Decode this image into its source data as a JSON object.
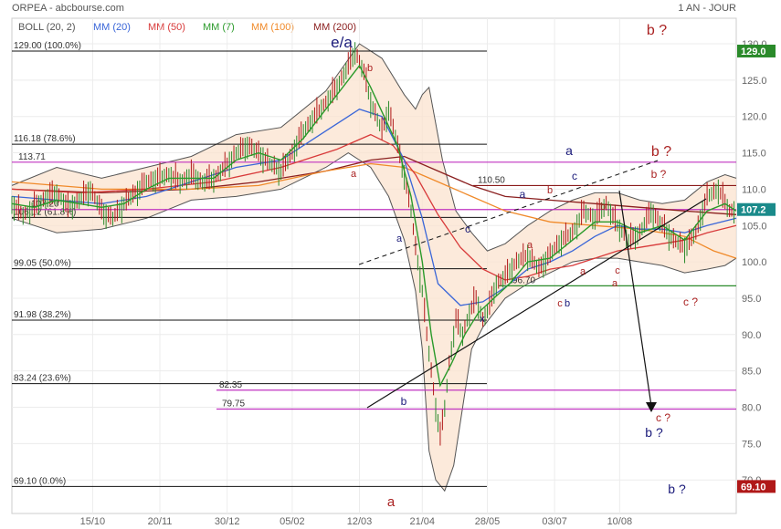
{
  "header": {
    "title": "ORPEA - abcbourse.com",
    "period": "1 AN - JOUR"
  },
  "legend": [
    {
      "label": "BOLL (20, 2)",
      "color": "#555555"
    },
    {
      "label": "MM (20)",
      "color": "#3a66d8"
    },
    {
      "label": "MM (50)",
      "color": "#d83a3a"
    },
    {
      "label": "MM (7)",
      "color": "#2a9a2a"
    },
    {
      "label": "MM (100)",
      "color": "#f08a2a"
    },
    {
      "label": "MM (200)",
      "color": "#8b2020"
    }
  ],
  "chart_data": {
    "type": "line",
    "x_tick_labels": [
      "15/10",
      "20/11",
      "30/12",
      "05/02",
      "12/03",
      "21/04",
      "28/05",
      "03/07",
      "10/08"
    ],
    "y_tick_labels": [
      "70.0",
      "75.0",
      "80.0",
      "85.0",
      "90.0",
      "95.0",
      "100.0",
      "105.0",
      "110.0",
      "115.0",
      "120.0",
      "125.0",
      "130.0"
    ],
    "ylim": [
      68.5,
      131
    ],
    "grid": true,
    "price_badges": [
      {
        "label": "129.0",
        "value": 129.0,
        "color": "#2a8a2a"
      },
      {
        "label": "107.2",
        "value": 107.2,
        "color": "#1a8a8a"
      },
      {
        "label": "69.10",
        "value": 69.1,
        "color": "#b01818"
      }
    ],
    "close_series": [
      [
        0,
        108
      ],
      [
        5,
        106.5
      ],
      [
        10,
        107.5
      ],
      [
        15,
        108.8
      ],
      [
        20,
        109.5
      ],
      [
        25,
        107.5
      ],
      [
        30,
        108.5
      ],
      [
        35,
        110
      ],
      [
        40,
        107
      ],
      [
        45,
        106
      ],
      [
        50,
        108
      ],
      [
        55,
        109.5
      ],
      [
        60,
        111
      ],
      [
        65,
        111.5
      ],
      [
        70,
        112
      ],
      [
        75,
        111
      ],
      [
        80,
        112
      ],
      [
        85,
        111
      ],
      [
        90,
        111.5
      ],
      [
        95,
        113
      ],
      [
        100,
        115
      ],
      [
        105,
        116
      ],
      [
        110,
        115
      ],
      [
        115,
        113.5
      ],
      [
        120,
        112.5
      ],
      [
        125,
        115
      ],
      [
        130,
        118
      ],
      [
        135,
        120
      ],
      [
        140,
        122
      ],
      [
        145,
        124
      ],
      [
        150,
        127
      ],
      [
        153,
        129
      ],
      [
        157,
        126
      ],
      [
        160,
        122
      ],
      [
        165,
        118
      ],
      [
        168,
        121
      ],
      [
        172,
        116
      ],
      [
        175,
        112
      ],
      [
        178,
        107
      ],
      [
        180,
        102
      ],
      [
        183,
        96
      ],
      [
        185,
        90
      ],
      [
        187,
        85
      ],
      [
        189,
        80
      ],
      [
        191,
        76
      ],
      [
        193,
        80
      ],
      [
        195,
        86
      ],
      [
        198,
        92
      ],
      [
        201,
        90
      ],
      [
        204,
        93
      ],
      [
        207,
        95
      ],
      [
        210,
        92
      ],
      [
        213,
        94
      ],
      [
        216,
        97
      ],
      [
        220,
        98
      ],
      [
        225,
        100
      ],
      [
        230,
        101
      ],
      [
        235,
        99
      ],
      [
        240,
        101
      ],
      [
        245,
        103
      ],
      [
        250,
        104
      ],
      [
        255,
        107
      ],
      [
        260,
        106
      ],
      [
        265,
        108
      ],
      [
        270,
        105
      ],
      [
        275,
        103
      ],
      [
        280,
        104
      ],
      [
        285,
        107
      ],
      [
        290,
        105
      ],
      [
        295,
        103
      ],
      [
        300,
        102
      ],
      [
        305,
        104
      ],
      [
        310,
        109
      ],
      [
        315,
        110
      ],
      [
        320,
        107
      ],
      [
        323,
        107.2
      ]
    ],
    "ma7_series": [
      [
        0,
        108
      ],
      [
        10,
        107.5
      ],
      [
        20,
        108.5
      ],
      [
        30,
        108
      ],
      [
        40,
        107.5
      ],
      [
        50,
        108
      ],
      [
        60,
        110
      ],
      [
        70,
        111.5
      ],
      [
        80,
        111.5
      ],
      [
        90,
        111.5
      ],
      [
        100,
        114
      ],
      [
        110,
        115
      ],
      [
        120,
        114
      ],
      [
        130,
        117
      ],
      [
        140,
        121
      ],
      [
        150,
        125
      ],
      [
        155,
        127
      ],
      [
        160,
        124
      ],
      [
        166,
        120
      ],
      [
        172,
        116
      ],
      [
        178,
        109
      ],
      [
        183,
        100
      ],
      [
        187,
        90
      ],
      [
        191,
        83
      ],
      [
        196,
        86
      ],
      [
        202,
        90
      ],
      [
        208,
        93
      ],
      [
        215,
        95
      ],
      [
        222,
        97
      ],
      [
        230,
        100
      ],
      [
        240,
        100.5
      ],
      [
        250,
        103
      ],
      [
        260,
        105.5
      ],
      [
        270,
        105.5
      ],
      [
        280,
        104
      ],
      [
        290,
        105
      ],
      [
        300,
        103
      ],
      [
        310,
        107
      ],
      [
        318,
        108
      ],
      [
        323,
        107
      ]
    ],
    "ma20_series": [
      [
        0,
        109
      ],
      [
        20,
        108.5
      ],
      [
        40,
        108
      ],
      [
        60,
        109
      ],
      [
        80,
        111
      ],
      [
        100,
        113
      ],
      [
        120,
        114
      ],
      [
        140,
        118
      ],
      [
        155,
        121
      ],
      [
        165,
        120
      ],
      [
        175,
        114
      ],
      [
        183,
        106
      ],
      [
        190,
        97
      ],
      [
        200,
        94
      ],
      [
        210,
        94.5
      ],
      [
        220,
        96.5
      ],
      [
        230,
        99
      ],
      [
        240,
        100
      ],
      [
        250,
        101.5
      ],
      [
        260,
        103.5
      ],
      [
        270,
        105
      ],
      [
        280,
        104.5
      ],
      [
        290,
        104.5
      ],
      [
        300,
        104
      ],
      [
        310,
        105
      ],
      [
        323,
        106
      ]
    ],
    "ma50_series": [
      [
        0,
        110
      ],
      [
        30,
        109.5
      ],
      [
        60,
        110
      ],
      [
        90,
        111
      ],
      [
        120,
        113
      ],
      [
        145,
        115.5
      ],
      [
        160,
        117.5
      ],
      [
        170,
        116
      ],
      [
        180,
        112
      ],
      [
        190,
        106.5
      ],
      [
        200,
        102
      ],
      [
        210,
        99
      ],
      [
        220,
        97.5
      ],
      [
        230,
        98
      ],
      [
        240,
        99
      ],
      [
        250,
        99.5
      ],
      [
        260,
        100.5
      ],
      [
        270,
        101.5
      ],
      [
        280,
        102
      ],
      [
        290,
        102.5
      ],
      [
        300,
        103
      ],
      [
        310,
        104
      ],
      [
        323,
        105
      ]
    ],
    "ma100_series": [
      [
        0,
        111
      ],
      [
        40,
        110
      ],
      [
        80,
        110
      ],
      [
        110,
        110.5
      ],
      [
        140,
        112.5
      ],
      [
        160,
        113.5
      ],
      [
        175,
        113
      ],
      [
        190,
        111
      ],
      [
        205,
        109
      ],
      [
        220,
        107
      ],
      [
        240,
        105.5
      ],
      [
        260,
        105
      ],
      [
        280,
        104.5
      ],
      [
        300,
        103.5
      ],
      [
        313,
        101.5
      ],
      [
        323,
        100.5
      ]
    ],
    "ma200_series": [
      [
        0,
        110
      ],
      [
        40,
        109.5
      ],
      [
        80,
        110
      ],
      [
        110,
        111
      ],
      [
        140,
        112.5
      ],
      [
        160,
        114
      ],
      [
        175,
        114.5
      ],
      [
        190,
        112.5
      ],
      [
        205,
        110.5
      ],
      [
        220,
        109
      ],
      [
        240,
        108.5
      ],
      [
        260,
        108
      ],
      [
        280,
        107.5
      ],
      [
        300,
        107
      ],
      [
        323,
        106.5
      ]
    ],
    "boll_upper": [
      [
        0,
        110.5
      ],
      [
        20,
        113
      ],
      [
        40,
        111.5
      ],
      [
        60,
        113
      ],
      [
        80,
        114.5
      ],
      [
        100,
        117.5
      ],
      [
        120,
        118.5
      ],
      [
        140,
        123.5
      ],
      [
        155,
        130
      ],
      [
        165,
        128
      ],
      [
        175,
        123
      ],
      [
        180,
        121
      ],
      [
        183,
        123
      ],
      [
        186,
        124
      ],
      [
        192,
        114
      ],
      [
        198,
        107
      ],
      [
        205,
        104
      ],
      [
        212,
        101.5
      ],
      [
        220,
        102.5
      ],
      [
        230,
        105
      ],
      [
        240,
        107
      ],
      [
        250,
        108.5
      ],
      [
        260,
        109.5
      ],
      [
        270,
        109.5
      ],
      [
        280,
        108.5
      ],
      [
        290,
        108
      ],
      [
        300,
        108.5
      ],
      [
        310,
        111
      ],
      [
        318,
        112
      ],
      [
        323,
        111.5
      ]
    ],
    "boll_lower": [
      [
        0,
        106
      ],
      [
        20,
        104
      ],
      [
        40,
        104.5
      ],
      [
        60,
        106
      ],
      [
        80,
        108.5
      ],
      [
        100,
        109
      ],
      [
        120,
        110
      ],
      [
        140,
        113
      ],
      [
        150,
        115
      ],
      [
        160,
        113
      ],
      [
        168,
        109
      ],
      [
        175,
        103
      ],
      [
        180,
        96
      ],
      [
        183,
        88
      ],
      [
        186,
        74
      ],
      [
        189,
        70
      ],
      [
        193,
        68.5
      ],
      [
        197,
        72
      ],
      [
        201,
        80
      ],
      [
        205,
        88
      ],
      [
        210,
        91
      ],
      [
        215,
        93
      ],
      [
        220,
        95
      ],
      [
        230,
        97
      ],
      [
        240,
        98.5
      ],
      [
        250,
        100
      ],
      [
        260,
        100.5
      ],
      [
        270,
        100.5
      ],
      [
        280,
        100
      ],
      [
        290,
        99.5
      ],
      [
        300,
        98.5
      ],
      [
        310,
        99
      ],
      [
        318,
        99.5
      ],
      [
        323,
        100.5
      ]
    ],
    "fibonacci_levels": [
      {
        "label": "129.00 (100.0%)",
        "value": 129.0
      },
      {
        "label": "116.18 (78.6%)",
        "value": 116.18
      },
      {
        "label": "106.12 (61.8%)",
        "value": 106.12
      },
      {
        "label": "99.05 (50.0%)",
        "value": 99.05
      },
      {
        "label": "91.98 (38.2%)",
        "value": 91.98
      },
      {
        "label": "83.24 (23.6%)",
        "value": 83.24
      },
      {
        "label": "69.10 (0.0%)",
        "value": 69.1
      }
    ],
    "horizontal_levels": [
      {
        "label": "113.71",
        "value": 113.71,
        "color": "#c033c0"
      },
      {
        "label": "107.20",
        "value": 107.2,
        "color": "#c033c0"
      },
      {
        "label": "110.50",
        "value": 110.5,
        "color": "#8b1a1a"
      },
      {
        "label": "96.70",
        "value": 96.7,
        "color": "#2a8a2a"
      },
      {
        "label": "82.35",
        "value": 82.35,
        "color": "#c033c0"
      },
      {
        "label": "79.75",
        "value": 79.75,
        "color": "#c033c0"
      }
    ],
    "wave_labels": [
      {
        "text": "e/a",
        "color": "#1a1a7a"
      },
      {
        "text": "b",
        "color": "#aa2222"
      },
      {
        "text": "a",
        "color": "#aa2222"
      },
      {
        "text": "a",
        "color": "#1a1a7a"
      },
      {
        "text": "b",
        "color": "#1a1a7a"
      },
      {
        "text": "a",
        "color": "#aa2222"
      },
      {
        "text": "c",
        "color": "#1a1a7a"
      },
      {
        "text": "x",
        "color": "#1a1a7a"
      },
      {
        "text": "a",
        "color": "#1a1a7a"
      },
      {
        "text": "b",
        "color": "#aa2222"
      },
      {
        "text": "a",
        "color": "#aa2222"
      },
      {
        "text": "c",
        "color": "#1a1a7a"
      },
      {
        "text": "c",
        "color": "#aa2222"
      },
      {
        "text": "b",
        "color": "#1a1a7a"
      },
      {
        "text": "a",
        "color": "#aa2222"
      },
      {
        "text": "b",
        "color": "#aa2222"
      },
      {
        "text": "c",
        "color": "#aa2222"
      },
      {
        "text": "a",
        "color": "#aa2222"
      },
      {
        "text": "a",
        "color": "#1a1a7a"
      },
      {
        "text": "b ?",
        "color": "#aa2222"
      },
      {
        "text": "b ?",
        "color": "#aa2222"
      },
      {
        "text": "b ?",
        "color": "#aa2222"
      },
      {
        "text": "c ?",
        "color": "#aa2222"
      },
      {
        "text": "c ?",
        "color": "#aa2222"
      },
      {
        "text": "b ?",
        "color": "#1a1a7a"
      },
      {
        "text": "b ?",
        "color": "#1a1a7a"
      }
    ]
  }
}
